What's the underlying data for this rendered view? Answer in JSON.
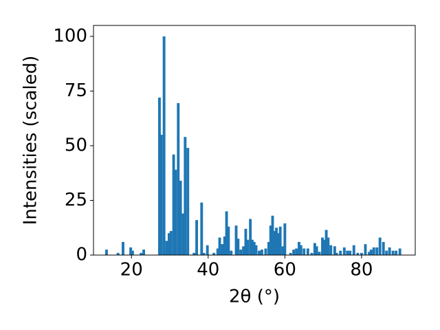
{
  "chart_data": {
    "type": "bar",
    "xlabel": "2θ (°)",
    "ylabel": "Intensities (scaled)",
    "color": "#1f77b4",
    "bar_width": 0.7,
    "xlim": [
      10.1,
      94
    ],
    "ylim": [
      0,
      105
    ],
    "xticks": [
      20,
      40,
      60,
      80
    ],
    "yticks": [
      0,
      25,
      50,
      75,
      100
    ],
    "x": [
      13.5,
      16.5,
      17.8,
      19.8,
      20.3,
      22.5,
      23.2,
      27.3,
      27.8,
      28.5,
      29.2,
      29.8,
      30.3,
      31.0,
      31.5,
      32.2,
      32.8,
      33.5,
      34.0,
      34.7,
      36.3,
      37.0,
      38.3,
      38.9,
      39.8,
      41.5,
      42.5,
      43.0,
      43.7,
      44.3,
      44.8,
      45.3,
      46.0,
      47.3,
      47.8,
      48.5,
      49.2,
      49.8,
      50.3,
      51.0,
      51.5,
      52.0,
      52.5,
      53.3,
      54.0,
      55.0,
      55.8,
      56.3,
      56.8,
      57.3,
      57.8,
      58.3,
      58.8,
      59.5,
      60.0,
      61.5,
      62.3,
      63.0,
      63.7,
      64.2,
      65.0,
      66.0,
      67.0,
      67.8,
      68.3,
      69.0,
      69.8,
      70.3,
      70.8,
      71.3,
      72.0,
      73.0,
      73.5,
      74.5,
      75.5,
      76.3,
      77.0,
      78.0,
      79.0,
      80.0,
      81.0,
      82.0,
      82.5,
      83.2,
      84.0,
      84.8,
      85.7,
      86.5,
      87.3,
      88.2,
      89.0,
      90.0
    ],
    "values": [
      2.5,
      1,
      6,
      3.5,
      2,
      1,
      2.5,
      72,
      55,
      100,
      6.5,
      10,
      11,
      46,
      39,
      69.5,
      34,
      19,
      54,
      49,
      1,
      16,
      24,
      1,
      4.5,
      1,
      3,
      8,
      5,
      8.5,
      20,
      13,
      2,
      13.5,
      7.5,
      2.5,
      4,
      12,
      7,
      16.5,
      7,
      6,
      4.5,
      2,
      2.5,
      3,
      6,
      13.5,
      18,
      11,
      12.5,
      10,
      13,
      4,
      14.5,
      1,
      2.5,
      3,
      6,
      4.5,
      3,
      3,
      1,
      5.5,
      4,
      1.5,
      8,
      7,
      11.5,
      8,
      4.5,
      4,
      1,
      2,
      3.5,
      2,
      2,
      4.5,
      1,
      1,
      5,
      1.5,
      2.5,
      3.5,
      3.5,
      8,
      6,
      2,
      3.5,
      2,
      2,
      3
    ]
  }
}
